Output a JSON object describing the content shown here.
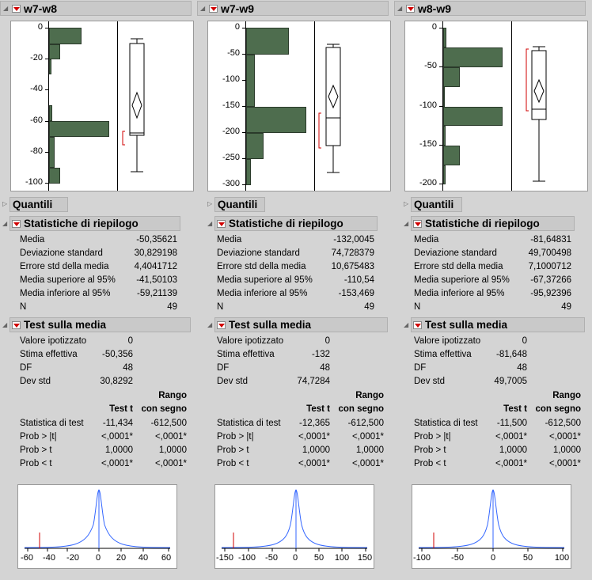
{
  "columns": [
    {
      "title": "w7-w8",
      "axis_ticks": [
        "0",
        "-20",
        "-40",
        "-60",
        "-80",
        "-100"
      ],
      "quantili": "Quantili",
      "stats_title": "Statistiche di riepilogo",
      "stats": [
        {
          "label": "Media",
          "value": "-50,35621"
        },
        {
          "label": "Deviazione standard",
          "value": "30,829198"
        },
        {
          "label": "Errore std della media",
          "value": "4,4041712"
        },
        {
          "label": "Media superiore al 95%",
          "value": "-41,50103"
        },
        {
          "label": "Media inferiore al 95%",
          "value": "-59,21139"
        },
        {
          "label": "N",
          "value": "49"
        }
      ],
      "test_title": "Test sulla media",
      "test": [
        {
          "label": "Valore ipotizzato",
          "value": "0"
        },
        {
          "label": "Stima effettiva",
          "value": "-50,356"
        },
        {
          "label": "DF",
          "value": "48"
        },
        {
          "label": "Dev std",
          "value": "30,8292"
        }
      ],
      "rango": "Rango",
      "col1": "Test t",
      "col2": "con segno",
      "table": [
        {
          "label": "Statistica di test",
          "a": "-11,434",
          "b": "-612,500"
        },
        {
          "label": "Prob > |t|",
          "a": "<,0001*",
          "b": "<,0001*"
        },
        {
          "label": "Prob > t",
          "a": "1,0000",
          "b": "1,0000"
        },
        {
          "label": "Prob < t",
          "a": "<,0001*",
          "b": "<,0001*"
        }
      ],
      "x_ticks": [
        "-60",
        "-40",
        "-20",
        "0",
        "20",
        "40",
        "60"
      ]
    },
    {
      "title": "w7-w9",
      "axis_ticks": [
        "0",
        "-50",
        "-100",
        "-150",
        "-200",
        "-250",
        "-300"
      ],
      "quantili": "Quantili",
      "stats_title": "Statistiche di riepilogo",
      "stats": [
        {
          "label": "Media",
          "value": "-132,0045"
        },
        {
          "label": "Deviazione standard",
          "value": "74,728379"
        },
        {
          "label": "Errore std della media",
          "value": "10,675483"
        },
        {
          "label": "Media superiore al 95%",
          "value": "-110,54"
        },
        {
          "label": "Media inferiore al 95%",
          "value": "-153,469"
        },
        {
          "label": "N",
          "value": "49"
        }
      ],
      "test_title": "Test sulla media",
      "test": [
        {
          "label": "Valore ipotizzato",
          "value": "0"
        },
        {
          "label": "Stima effettiva",
          "value": "-132"
        },
        {
          "label": "DF",
          "value": "48"
        },
        {
          "label": "Dev std",
          "value": "74,7284"
        }
      ],
      "rango": "Rango",
      "col1": "Test t",
      "col2": "con segno",
      "table": [
        {
          "label": "Statistica di test",
          "a": "-12,365",
          "b": "-612,500"
        },
        {
          "label": "Prob > |t|",
          "a": "<,0001*",
          "b": "<,0001*"
        },
        {
          "label": "Prob > t",
          "a": "1,0000",
          "b": "1,0000"
        },
        {
          "label": "Prob < t",
          "a": "<,0001*",
          "b": "<,0001*"
        }
      ],
      "x_ticks": [
        "-150",
        "-100",
        "-50",
        "0",
        "50",
        "100",
        "150"
      ]
    },
    {
      "title": "w8-w9",
      "axis_ticks": [
        "0",
        "-50",
        "-100",
        "-150",
        "-200"
      ],
      "quantili": "Quantili",
      "stats_title": "Statistiche di riepilogo",
      "stats": [
        {
          "label": "Media",
          "value": "-81,64831"
        },
        {
          "label": "Deviazione standard",
          "value": "49,700498"
        },
        {
          "label": "Errore std della media",
          "value": "7,1000712"
        },
        {
          "label": "Media superiore al 95%",
          "value": "-67,37266"
        },
        {
          "label": "Media inferiore al 95%",
          "value": "-95,92396"
        },
        {
          "label": "N",
          "value": "49"
        }
      ],
      "test_title": "Test sulla media",
      "test": [
        {
          "label": "Valore ipotizzato",
          "value": "0"
        },
        {
          "label": "Stima effettiva",
          "value": "-81,648"
        },
        {
          "label": "DF",
          "value": "48"
        },
        {
          "label": "Dev std",
          "value": "49,7005"
        }
      ],
      "rango": "Rango",
      "col1": "Test t",
      "col2": "con segno",
      "table": [
        {
          "label": "Statistica di test",
          "a": "-11,500",
          "b": "-612,500"
        },
        {
          "label": "Prob > |t|",
          "a": "<,0001*",
          "b": "<,0001*"
        },
        {
          "label": "Prob > t",
          "a": "1,0000",
          "b": "1,0000"
        },
        {
          "label": "Prob < t",
          "a": "<,0001*",
          "b": "<,0001*"
        }
      ],
      "x_ticks": [
        "-100",
        "-50",
        "0",
        "50",
        "100"
      ]
    }
  ],
  "colors": {
    "bar": "#4e6d4e",
    "curve": "#3366ff",
    "marker": "#d00000"
  }
}
